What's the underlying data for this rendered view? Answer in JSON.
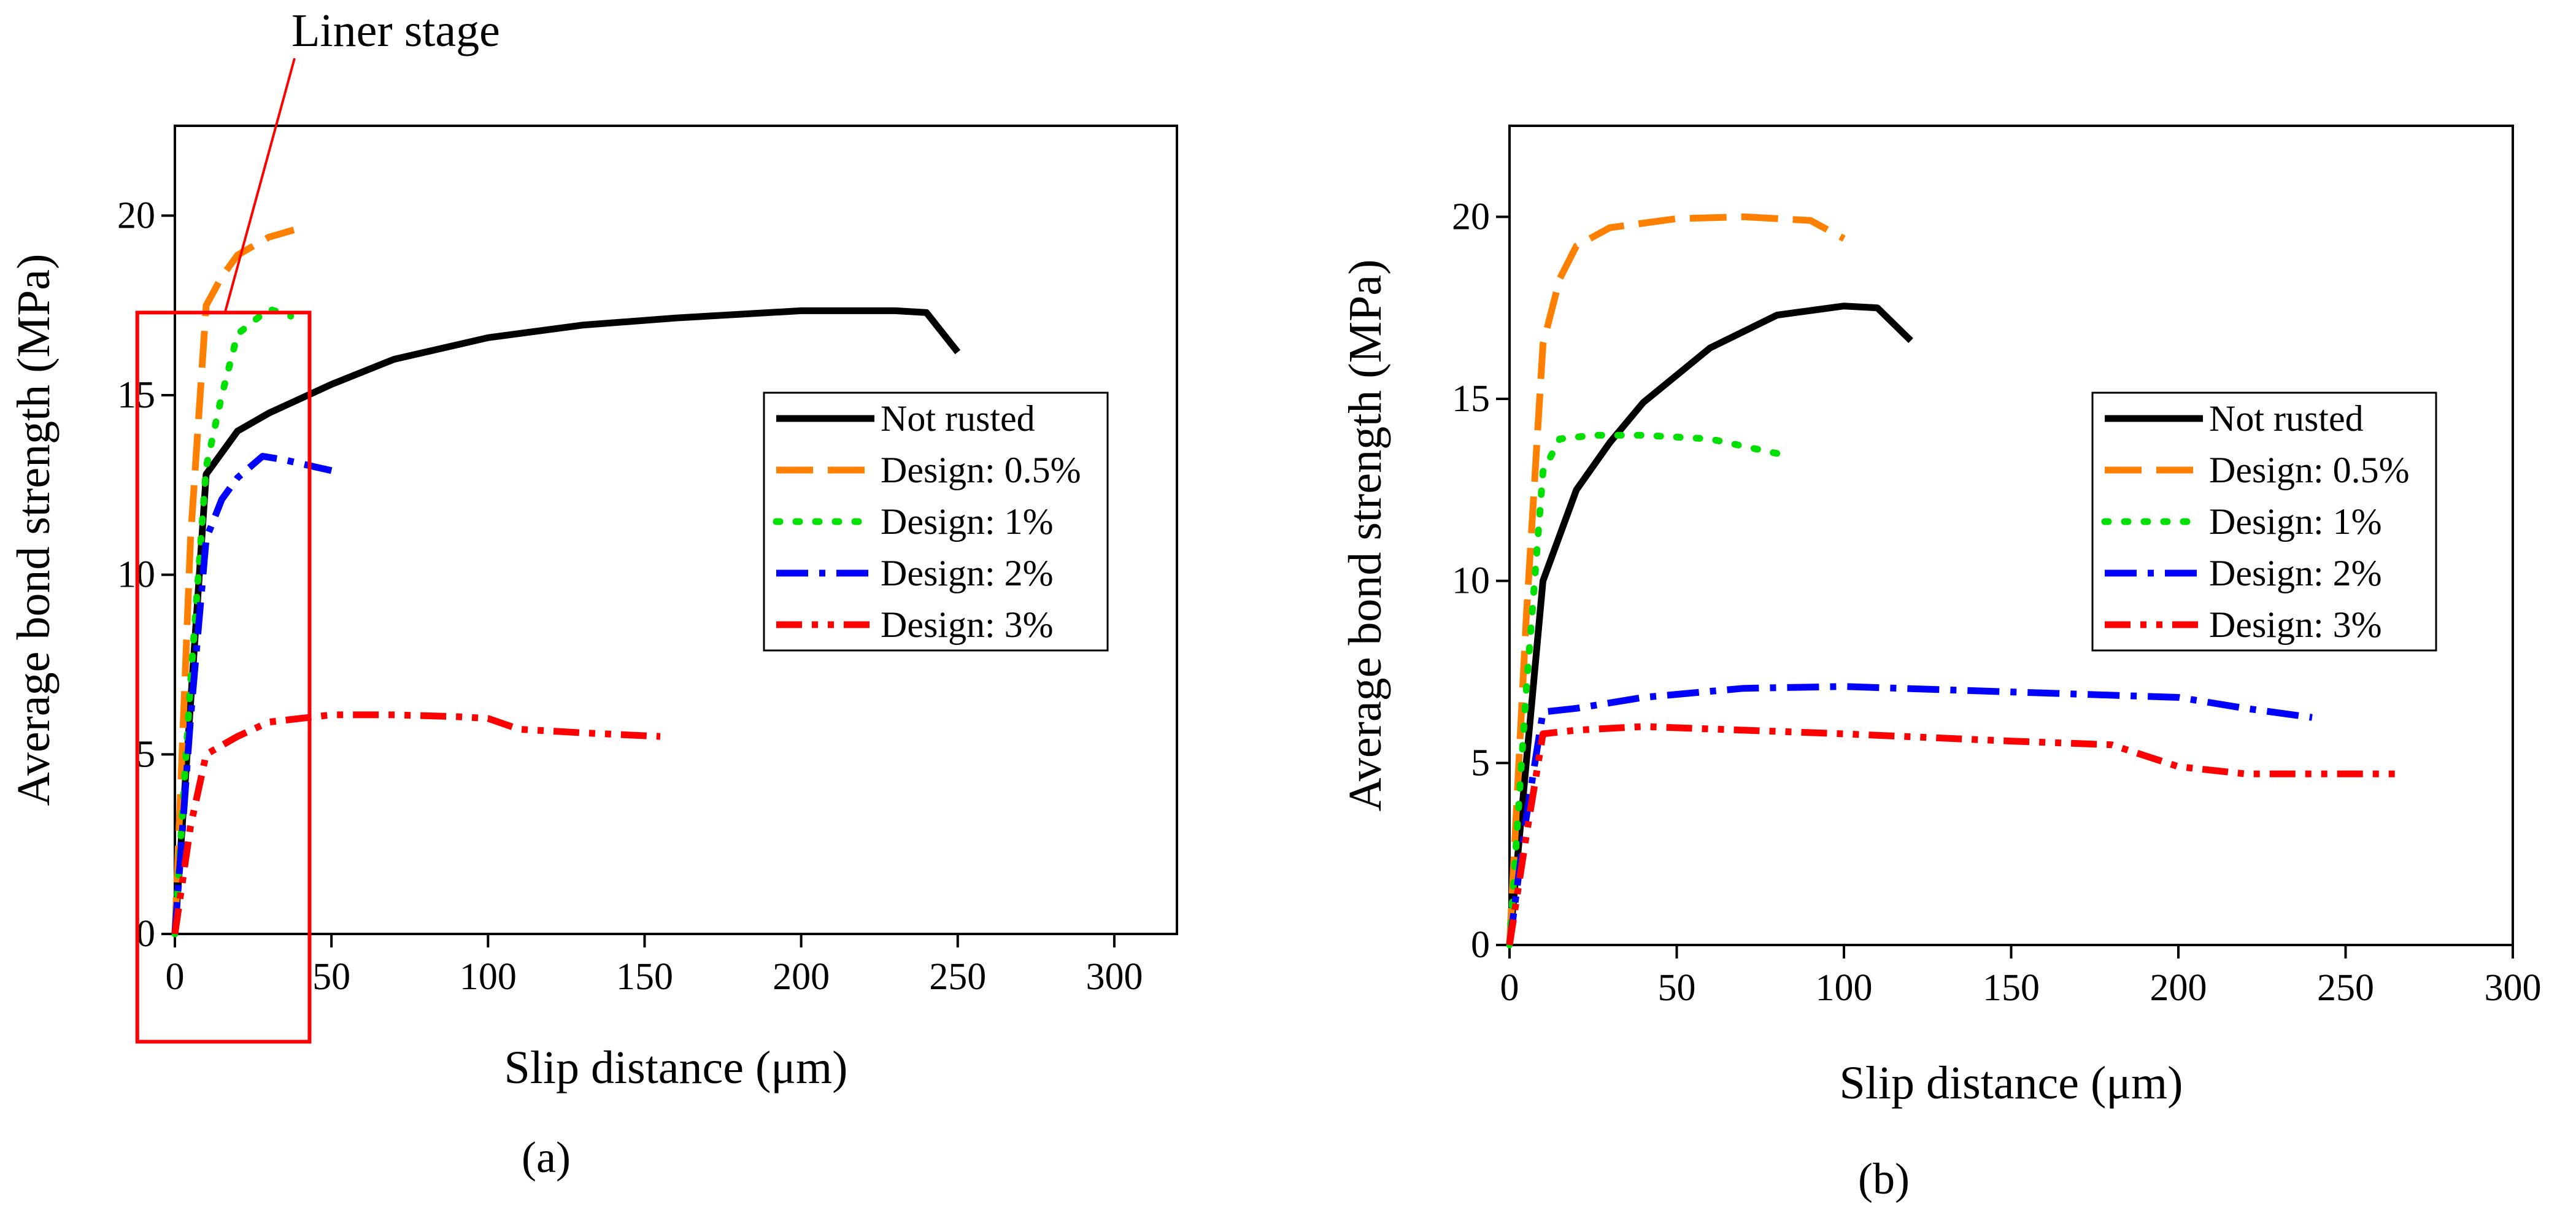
{
  "chart_data": [
    {
      "type": "line",
      "panel": "(a)",
      "xlabel": "Slip distance (μm)",
      "ylabel": "Average bond strength (MPa)",
      "xlim": [
        0,
        320
      ],
      "ylim": [
        0,
        22.5
      ],
      "xticks": [
        0,
        50,
        100,
        150,
        200,
        250,
        300
      ],
      "yticks": [
        0,
        5,
        10,
        15,
        20
      ],
      "legend_position": "right",
      "annotation": {
        "text": "Liner stage",
        "highlight_x_range": [
          -12,
          43
        ],
        "highlight_y_range": [
          -3,
          17.3
        ]
      },
      "series": [
        {
          "name": "Not rusted",
          "color": "#000000",
          "style": "solid",
          "x": [
            0,
            10,
            20,
            30,
            50,
            70,
            100,
            130,
            160,
            200,
            230,
            240,
            250
          ],
          "y": [
            0,
            12.8,
            14.0,
            14.5,
            15.3,
            16.0,
            16.6,
            16.95,
            17.15,
            17.35,
            17.35,
            17.3,
            16.2
          ]
        },
        {
          "name": "Design: 0.5%",
          "color": "#FF8000",
          "style": "dash",
          "x": [
            0,
            5,
            10,
            15,
            20,
            30,
            38
          ],
          "y": [
            0,
            11.0,
            17.5,
            18.3,
            18.9,
            19.4,
            19.6
          ]
        },
        {
          "name": "Design: 1%",
          "color": "#00E000",
          "style": "dot",
          "x": [
            0,
            5,
            10,
            15,
            20,
            30,
            37
          ],
          "y": [
            0,
            7.0,
            13.0,
            15.0,
            16.7,
            17.4,
            17.2
          ]
        },
        {
          "name": "Design: 2%",
          "color": "#0000FF",
          "style": "dashdot",
          "x": [
            0,
            5,
            10,
            15,
            20,
            28,
            35,
            45,
            50
          ],
          "y": [
            0,
            6.0,
            11.0,
            12.1,
            12.7,
            13.3,
            13.2,
            13.0,
            12.9
          ]
        },
        {
          "name": "Design: 3%",
          "color": "#FF0000",
          "style": "dashdotdot",
          "x": [
            0,
            5,
            10,
            20,
            30,
            50,
            70,
            90,
            100,
            110,
            130,
            155
          ],
          "y": [
            0,
            3.0,
            5.0,
            5.5,
            5.9,
            6.1,
            6.1,
            6.05,
            6.0,
            5.7,
            5.6,
            5.5
          ]
        }
      ]
    },
    {
      "type": "line",
      "panel": "(b)",
      "xlabel": "Slip distance (μm)",
      "ylabel": "Average bond strength (MPa)",
      "xlim": [
        0,
        300
      ],
      "ylim": [
        0,
        22.5
      ],
      "xticks": [
        0,
        50,
        100,
        150,
        200,
        250,
        300
      ],
      "yticks": [
        0,
        5,
        10,
        15,
        20
      ],
      "legend_position": "right",
      "series": [
        {
          "name": "Not rusted",
          "color": "#000000",
          "style": "solid",
          "x": [
            0,
            10,
            20,
            30,
            40,
            60,
            80,
            100,
            110,
            120
          ],
          "y": [
            0,
            10.0,
            12.5,
            13.8,
            14.9,
            16.4,
            17.3,
            17.55,
            17.5,
            16.6
          ]
        },
        {
          "name": "Design: 0.5%",
          "color": "#FF8000",
          "style": "dash",
          "x": [
            0,
            5,
            10,
            15,
            20,
            30,
            50,
            70,
            90,
            100
          ],
          "y": [
            0,
            9.0,
            16.5,
            18.3,
            19.2,
            19.7,
            19.95,
            20.0,
            19.9,
            19.4
          ]
        },
        {
          "name": "Design: 1%",
          "color": "#00E000",
          "style": "dot",
          "x": [
            0,
            5,
            10,
            15,
            25,
            40,
            60,
            80
          ],
          "y": [
            0,
            7.0,
            13.0,
            13.9,
            14.0,
            14.0,
            13.9,
            13.5
          ]
        },
        {
          "name": "Design: 2%",
          "color": "#0000FF",
          "style": "dashdot",
          "x": [
            0,
            5,
            10,
            20,
            40,
            70,
            100,
            150,
            200,
            220,
            240
          ],
          "y": [
            0,
            3.5,
            6.4,
            6.5,
            6.8,
            7.05,
            7.1,
            6.95,
            6.8,
            6.5,
            6.25
          ]
        },
        {
          "name": "Design: 3%",
          "color": "#FF0000",
          "style": "dashdotdot",
          "x": [
            0,
            5,
            10,
            20,
            40,
            70,
            100,
            150,
            180,
            200,
            220,
            265
          ],
          "y": [
            0,
            3.0,
            5.8,
            5.9,
            6.0,
            5.9,
            5.8,
            5.6,
            5.5,
            4.9,
            4.7,
            4.7
          ]
        }
      ]
    }
  ]
}
